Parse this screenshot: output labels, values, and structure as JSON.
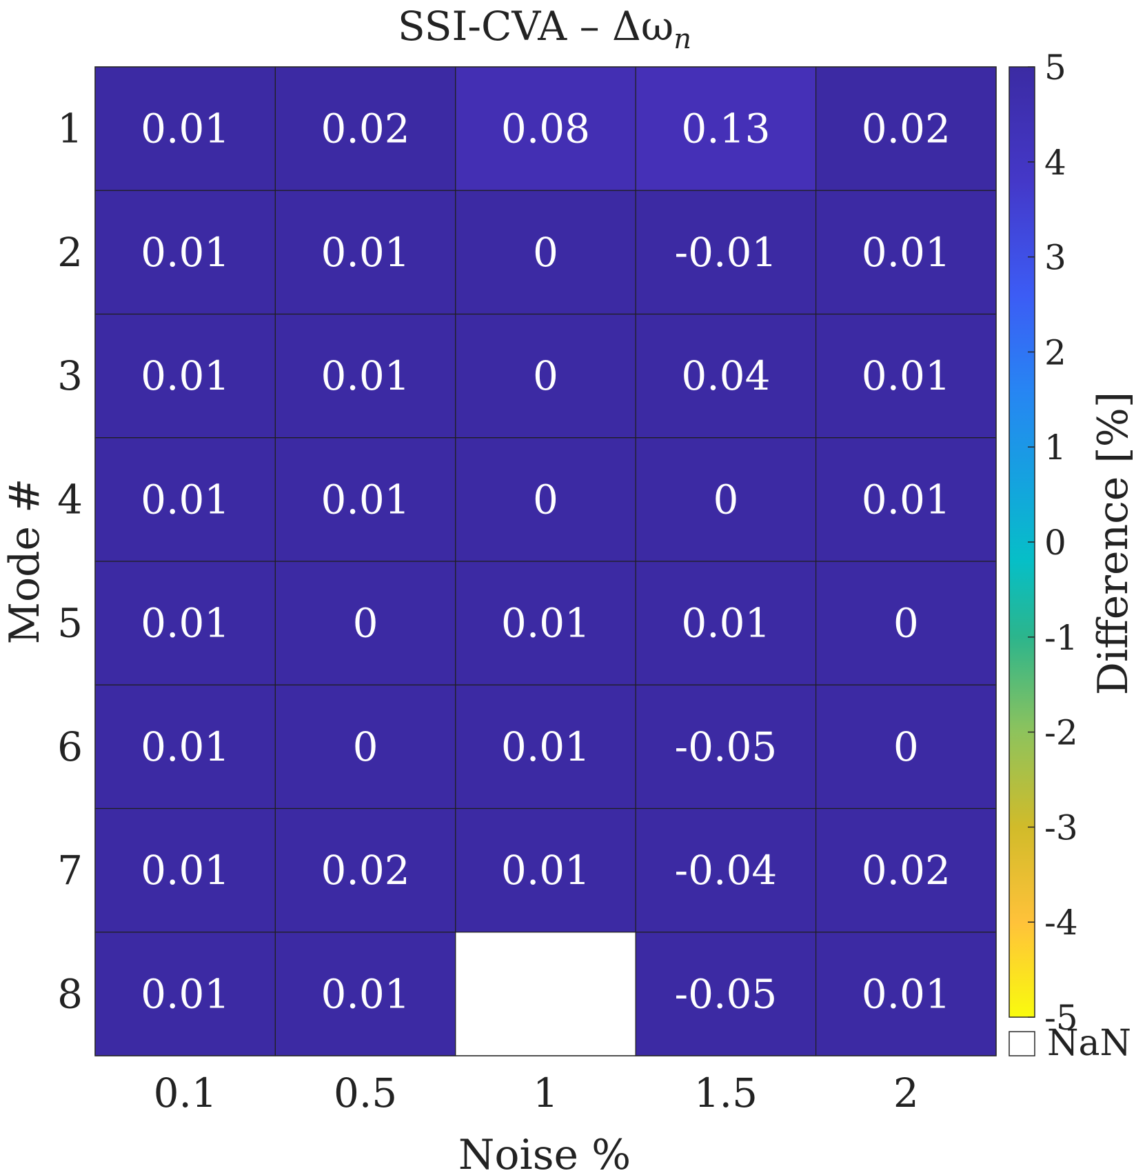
{
  "chart_data": {
    "type": "heatmap",
    "title": "SSI-CVA – Δω",
    "title_subscript": "n",
    "xlabel": "Noise %",
    "ylabel": "Mode #",
    "x_categories": [
      "0.1",
      "0.5",
      "1",
      "1.5",
      "2"
    ],
    "y_categories": [
      "1",
      "2",
      "3",
      "4",
      "5",
      "6",
      "7",
      "8"
    ],
    "values": [
      [
        0.01,
        0.02,
        0.08,
        0.13,
        0.02
      ],
      [
        0.01,
        0.01,
        0,
        -0.01,
        0.01
      ],
      [
        0.01,
        0.01,
        0,
        0.04,
        0.01
      ],
      [
        0.01,
        0.01,
        0,
        0,
        0.01
      ],
      [
        0.01,
        0,
        0.01,
        0.01,
        0
      ],
      [
        0.01,
        0,
        0.01,
        -0.05,
        0
      ],
      [
        0.01,
        0.02,
        0.01,
        -0.04,
        0.02
      ],
      [
        0.01,
        0.01,
        null,
        -0.05,
        0.01
      ]
    ],
    "colorbar": {
      "label": "Difference [%]",
      "range": [
        -5,
        5
      ],
      "ticks": [
        "5",
        "4",
        "3",
        "2",
        "1",
        "0",
        "-1",
        "-2",
        "-3",
        "-4",
        "-5"
      ],
      "colormap": "parula (symmetric)",
      "nan_label": "NaN",
      "nan_color": "#ffffff"
    },
    "grid": true
  }
}
